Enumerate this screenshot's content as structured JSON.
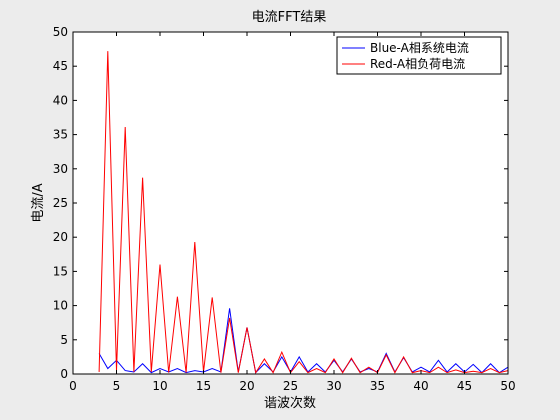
{
  "chart_data": {
    "type": "line",
    "title": "电流FFT结果",
    "xlabel": "谐波次数",
    "ylabel": "电流/A",
    "xlim": [
      0,
      50
    ],
    "ylim": [
      0,
      50
    ],
    "xticks": [
      0,
      5,
      10,
      15,
      20,
      25,
      30,
      35,
      40,
      45,
      50
    ],
    "yticks": [
      0,
      5,
      10,
      15,
      20,
      25,
      30,
      35,
      40,
      45,
      50
    ],
    "grid": false,
    "legend_position": "top-right",
    "series": [
      {
        "name": "Blue-A相系统电流",
        "color": "#0000ff",
        "x": [
          3,
          4,
          5,
          6,
          7,
          8,
          9,
          10,
          11,
          12,
          13,
          14,
          15,
          16,
          17,
          18,
          19,
          20,
          21,
          22,
          23,
          24,
          25,
          26,
          27,
          28,
          29,
          30,
          31,
          32,
          33,
          34,
          35,
          36,
          37,
          38,
          39,
          40,
          41,
          42,
          43,
          44,
          45,
          46,
          47,
          48,
          49,
          50
        ],
        "values": [
          3,
          0.8,
          2,
          0.5,
          0.3,
          1.5,
          0.2,
          0.8,
          0.3,
          0.8,
          0.2,
          0.5,
          0.3,
          0.8,
          0.3,
          9.6,
          0.3,
          6.8,
          0.2,
          1.5,
          0.3,
          2.5,
          0.3,
          2.5,
          0.3,
          1.5,
          0.3,
          2,
          0.3,
          2.2,
          0.3,
          0.8,
          0.3,
          3,
          0.3,
          2.4,
          0.3,
          1,
          0.3,
          2,
          0.3,
          1.5,
          0.3,
          1.4,
          0.2,
          1.5,
          0.2,
          1
        ]
      },
      {
        "name": "Red-A相负荷电流",
        "color": "#ff0000",
        "x": [
          3,
          4,
          5,
          6,
          7,
          8,
          9,
          10,
          11,
          12,
          13,
          14,
          15,
          16,
          17,
          18,
          19,
          20,
          21,
          22,
          23,
          24,
          25,
          26,
          27,
          28,
          29,
          30,
          31,
          32,
          33,
          34,
          35,
          36,
          37,
          38,
          39,
          40,
          41,
          42,
          43,
          44,
          45,
          46,
          47,
          48,
          49,
          50
        ],
        "values": [
          0.3,
          47.2,
          0.5,
          36.1,
          0.3,
          28.7,
          0.3,
          16,
          0.2,
          11.3,
          0.2,
          19.3,
          0.3,
          11.2,
          0.2,
          8.2,
          0.2,
          6.8,
          0.2,
          2.2,
          0.2,
          3.2,
          0.2,
          1.8,
          0.2,
          0.8,
          0.2,
          2.2,
          0.2,
          2.3,
          0.2,
          1,
          0.2,
          2.8,
          0.2,
          2.5,
          0.2,
          0.5,
          0.2,
          1,
          0.2,
          0.6,
          0.2,
          0.4,
          0.2,
          0.8,
          0.2,
          0.5
        ]
      }
    ]
  }
}
